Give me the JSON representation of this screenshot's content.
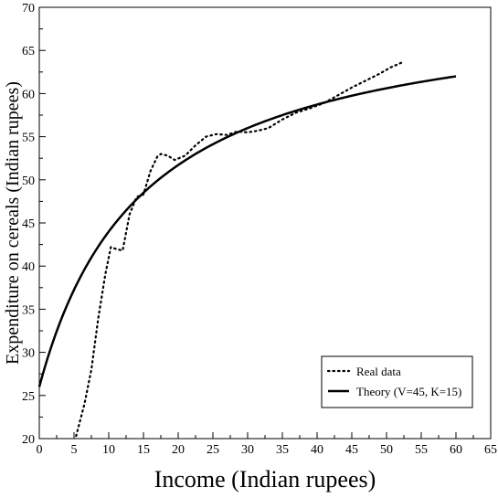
{
  "chart_data": {
    "type": "line",
    "xlabel": "Income (Indian rupees)",
    "ylabel": "Expenditure on cereals (Indian rupees)",
    "xlim": [
      0,
      65
    ],
    "ylim": [
      20,
      70
    ],
    "x_ticks": [
      0,
      5,
      10,
      15,
      20,
      25,
      30,
      35,
      40,
      45,
      50,
      55,
      60,
      65
    ],
    "y_ticks": [
      20,
      25,
      30,
      35,
      40,
      45,
      50,
      55,
      60,
      65,
      70
    ],
    "x_tick_labels": [
      "0",
      "5",
      "10",
      "15",
      "20",
      "25",
      "30",
      "35",
      "40",
      "45",
      "50",
      "55",
      "60",
      "65"
    ],
    "y_tick_labels": [
      "20",
      "25",
      "30",
      "35",
      "40",
      "45",
      "50",
      "55",
      "60",
      "65",
      "70"
    ],
    "legend_position": "bottom-right",
    "grid": false,
    "series": [
      {
        "name": "Real data",
        "style": "dotted",
        "color": "#000000",
        "x": [
          5.3,
          6.5,
          7.5,
          8.5,
          9.5,
          10.3,
          11.0,
          12.0,
          13.0,
          14.0,
          15.0,
          16.0,
          17.0,
          17.5,
          18.5,
          19.5,
          21.0,
          22.5,
          24.0,
          25.5,
          27.0,
          28.5,
          30.0,
          31.5,
          33.0,
          35.0,
          37.0,
          39.0,
          41.0,
          43.0,
          45.0,
          47.0,
          49.0,
          50.5,
          52.5
        ],
        "y": [
          20.3,
          24.0,
          28.0,
          34.0,
          39.0,
          42.2,
          42.0,
          41.8,
          46.0,
          48.0,
          48.3,
          51.0,
          52.7,
          53.0,
          52.8,
          52.3,
          52.8,
          54.0,
          55.0,
          55.3,
          55.2,
          55.6,
          55.5,
          55.7,
          56.0,
          57.0,
          57.8,
          58.3,
          58.9,
          59.8,
          60.7,
          61.5,
          62.3,
          63.0,
          63.7
        ]
      },
      {
        "name": "Theory (V=45, K=15)",
        "style": "solid",
        "color": "#000000",
        "model": {
          "V": 45,
          "K": 15,
          "base": 26
        },
        "x_range": [
          0,
          60
        ]
      }
    ]
  }
}
